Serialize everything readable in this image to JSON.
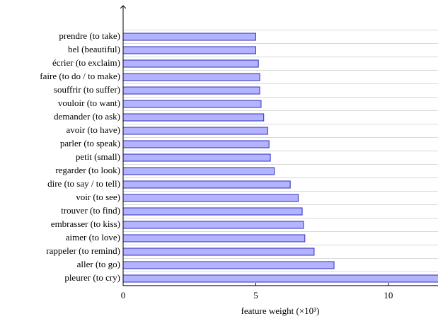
{
  "chart_data": {
    "type": "barh",
    "x_label": "feature weight (×10³)",
    "categories": [
      "prendre (to take)",
      "bel (beautiful)",
      "écrier (to exclaim)",
      "faire (to do / to make)",
      "souffrir (to suffer)",
      "vouloir (to want)",
      "demander (to ask)",
      "avoir (to have)",
      "parler (to speak)",
      "petit (small)",
      "regarder (to look)",
      "dire (to say / to tell)",
      "voir (to see)",
      "trouver (to find)",
      "embrasser (to kiss)",
      "aimer (to love)",
      "rappeler (to remind)",
      "aller (to go)",
      "pleurer (to cry)"
    ],
    "values": [
      5.0,
      5.0,
      5.1,
      5.15,
      5.15,
      5.2,
      5.3,
      5.45,
      5.5,
      5.55,
      5.7,
      6.3,
      6.6,
      6.75,
      6.8,
      6.85,
      7.2,
      7.95,
      12
    ],
    "color": "#b3b3ff",
    "edge_color": "#2e2ebf",
    "xlim": [
      0,
      11.87
    ],
    "xticks": [
      0,
      5,
      10
    ],
    "grid": true
  }
}
